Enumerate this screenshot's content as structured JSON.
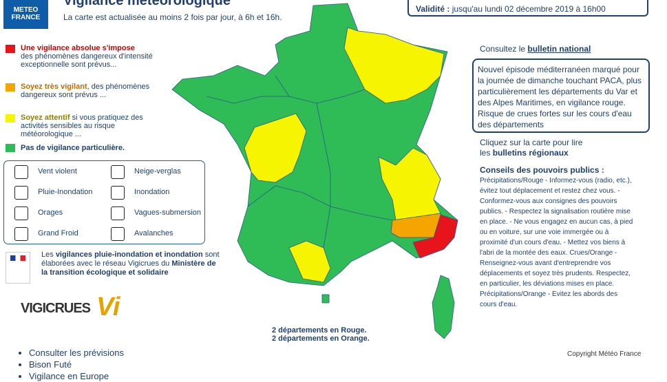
{
  "header": {
    "logo_line1": "METEO",
    "logo_line2": "FRANCE",
    "title": "Vigilance météorologique",
    "subtitle": "La carte est actualisée au moins 2 fois par jour, à 6h et 16h."
  },
  "validity": {
    "label": "Validité :",
    "text": "jusqu'au lundi 02 décembre 2019 à 16h00"
  },
  "levels": [
    {
      "bold": "Une vigilance absolue s'impose",
      "text": "des phénomènes dangereux d'intensité exceptionnelle sont prévus..."
    },
    {
      "bold": "Soyez très vigilant",
      "text": ", des phénomènes dangereux sont prévus ..."
    },
    {
      "bold": "Soyez attentif",
      "text": "si vous pratiquez des activités sensibles au risque météorologique ..."
    },
    {
      "bold": "Pas de vigilance particulière.",
      "text": null
    }
  ],
  "hazards": [
    "Vent violent",
    "Neige-verglas",
    "Pluie-Inondation",
    "Inondation",
    "Orages",
    "Vagues-submersion",
    "Grand Froid",
    "Avalanches"
  ],
  "vigicrues_note": {
    "prefix": "Les",
    "bold": "vigilances pluie-inondation et inondation",
    "middle": "sont élaborées avec le réseau Vigicrues du",
    "ministry": "Ministère de la transition écologique et solidaire"
  },
  "logos": {
    "vigicrues": "VIGICRUES",
    "vi": "Vi"
  },
  "links": [
    "Consulter les prévisions",
    "Bison Futé",
    "Vigilance en Europe"
  ],
  "map_summary": [
    "2 départements en Rouge.",
    "2 départements en Orange."
  ],
  "national": {
    "prefix": "Consultez le",
    "link": "bulletin national"
  },
  "bulletin": "Nouvel épisode méditerranéen marqué pour la journée de dimanche touchant PACA, plus particulièrement les départements du Var et des Alpes Maritimes, en vigilance rouge. Risque de crues fortes sur les cours d'eau des départements",
  "regional": {
    "text": "Cliquez sur la carte pour lire",
    "prefix": "les",
    "link": "bulletins régionaux"
  },
  "advice": {
    "title": "Conseils des pouvoirs publics :",
    "text": "Précipitations/Rouge - Informez-vous (radio, etc.), évitez tout déplacement et restez chez vous. - Conformez-vous aux consignes des pouvoirs publics. - Respectez la signalisation routière mise en place. - Ne vous engagez en aucun cas, à pied ou en voiture, sur une voie immergée ou à proximité d'un cours d'eau. - Mettez vos biens à l'abri de la montée des eaux. Crues/Orange - Renseignez-vous avant d'entreprendre vos déplacements et soyez très prudents. Respectez, en particulier, les déviations mises en place. Précipitations/Orange - Evitez les abords des cours d'eau."
  },
  "copyright": "Copyright Météo France"
}
